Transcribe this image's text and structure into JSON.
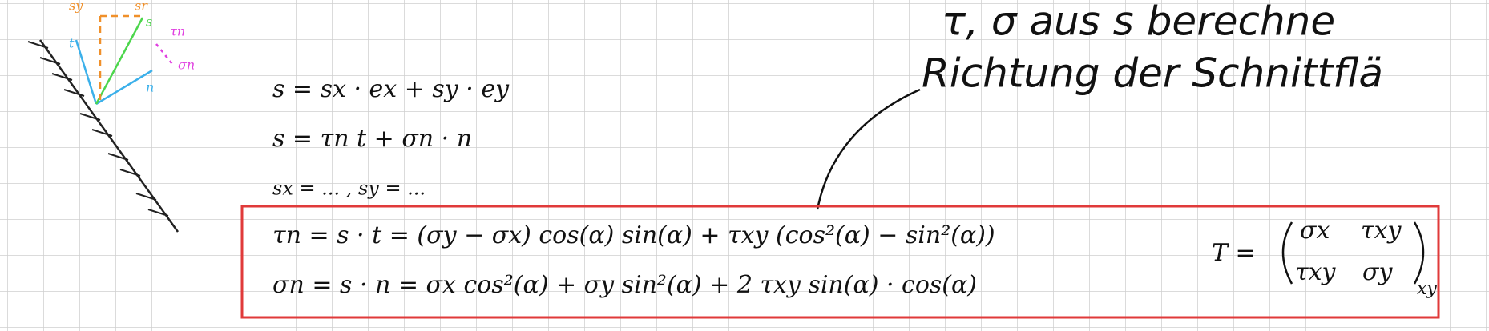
{
  "heading": {
    "line1": "τ, σ aus s berechne",
    "line2": "Richtung der Schnittflä"
  },
  "sketch": {
    "labels": [
      "sy",
      "sr",
      "s",
      "τn",
      "σn",
      "t",
      "n"
    ]
  },
  "equations": [
    "s = sx · ex + sy · ey",
    "s = τn t + σn · n",
    "sx = ...   ,   sy = ...",
    "τn = s · t = (σy − σx) cos(α) sin(α) + τxy (cos²(α) − sin²(α))",
    "σn = s · n = σx cos²(α) + σy sin²(α) + 2 τxy sin(α) · cos(α)"
  ],
  "matrix": {
    "symbol": "T =",
    "cells": [
      [
        "σx",
        "τxy"
      ],
      [
        "τxy",
        "σy"
      ]
    ],
    "subscript": "xy"
  }
}
